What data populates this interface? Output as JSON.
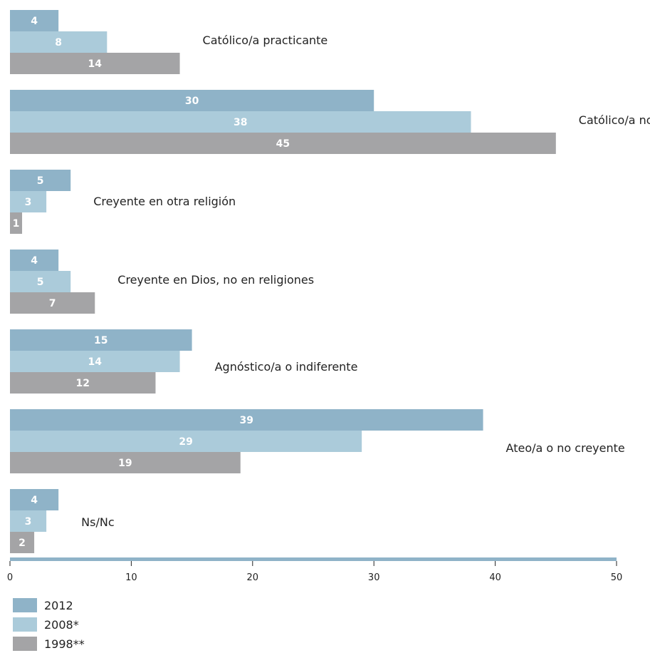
{
  "chart_data": {
    "type": "bar",
    "orientation": "horizontal",
    "categories": [
      "Católico/a practicante",
      "Católico/a no practicante",
      "Creyente en otra religión",
      "Creyente en Dios, no en religiones",
      "Agnóstico/a o indiferente",
      "Ateo/a o no creyente",
      "Ns/Nc"
    ],
    "series": [
      {
        "name": "2012",
        "color": "#8fb3c8",
        "values": [
          4,
          30,
          5,
          4,
          15,
          39,
          4
        ]
      },
      {
        "name": "2008*",
        "color": "#abcbda",
        "values": [
          8,
          38,
          3,
          5,
          14,
          29,
          3
        ]
      },
      {
        "name": "1998**",
        "color": "#a4a4a6",
        "values": [
          14,
          45,
          1,
          7,
          12,
          19,
          2
        ]
      }
    ],
    "xlim": [
      0,
      50
    ],
    "xticks": [
      0,
      10,
      20,
      30,
      40,
      50
    ],
    "axis_color": "#8fb3c8",
    "grid": false,
    "legend_position": "bottom-left"
  }
}
